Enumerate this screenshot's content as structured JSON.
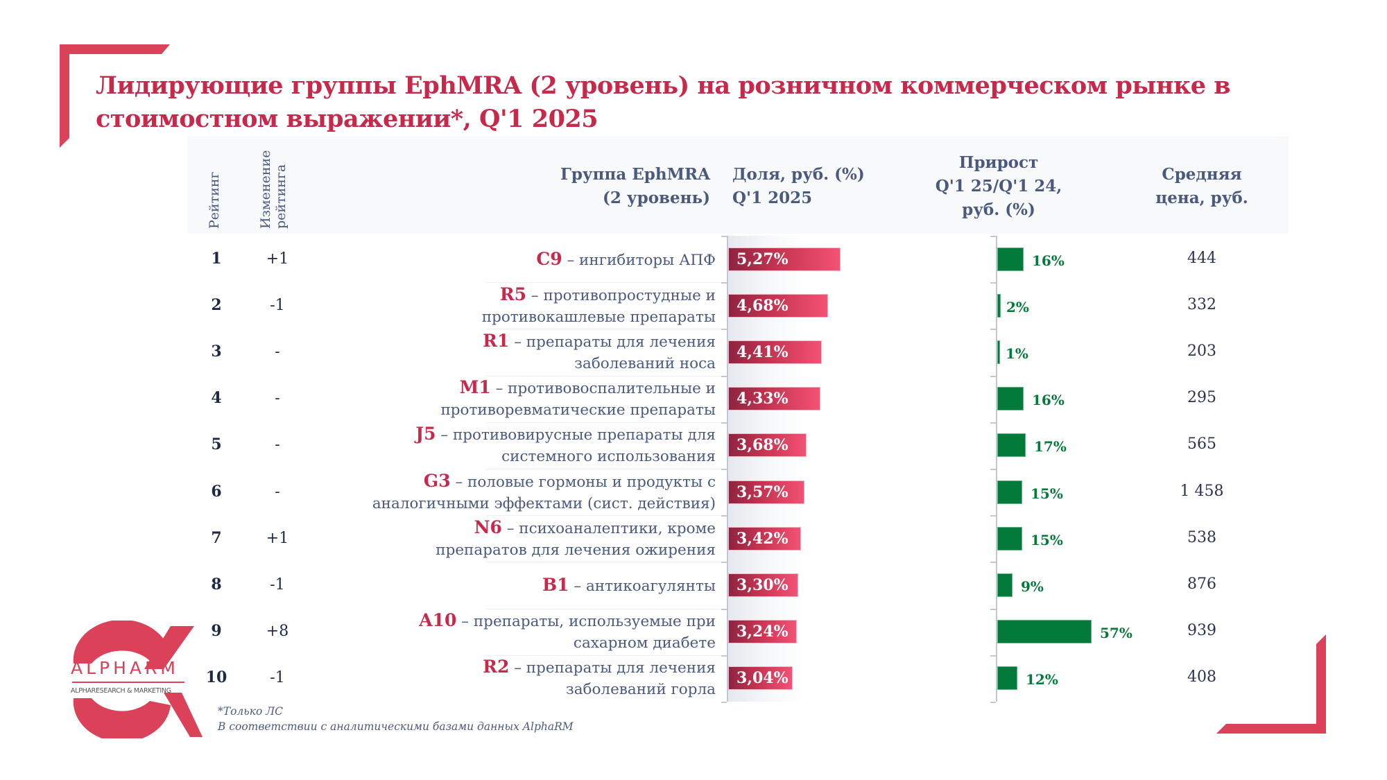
{
  "title": "Лидирующие группы EphMRA (2 уровень) на розничном коммерческом рынке в стоимостном выражении*, Q'1 2025",
  "headers": {
    "rank": "Рейтинг",
    "change_line1": "Изменение",
    "change_line2": "рейтинга",
    "group_line1": "Группа EphMRA",
    "group_line2": "(2 уровень)",
    "share_line1": "Доля, руб. (%)",
    "share_line2": "Q'1 2025",
    "growth_line1": "Прирост",
    "growth_line2": "Q'1 25/Q'1 24,",
    "growth_line3": "руб. (%)",
    "price_line1": "Средняя",
    "price_line2": "цена, руб."
  },
  "colors": {
    "accent": "#c8294a",
    "share_bar_dark": "#8e2440",
    "share_bar_light": "#f35275",
    "growth_bar": "#047a3a",
    "header_text": "#4a5a7e",
    "bracket": "#db4159"
  },
  "chart_data": {
    "type": "table",
    "title": "Лидирующие группы EphMRA (2 уровень) на розничном коммерческом рынке в стоимостном выражении*, Q'1 2025",
    "columns": [
      "Рейтинг",
      "Изменение рейтинга",
      "Группа EphMRA (2 уровень)",
      "Доля, руб. (%) Q'1 2025",
      "Прирост Q'1 25/Q'1 24, руб. (%)",
      "Средняя цена, руб."
    ],
    "rows": [
      {
        "rank": "1",
        "change": "+1",
        "code": "C9",
        "desc_line1": "– ингибиторы АПФ",
        "desc_line2": "",
        "share": 5.27,
        "share_label": "5,27%",
        "growth": 16,
        "growth_label": "16%",
        "price": "444"
      },
      {
        "rank": "2",
        "change": "-1",
        "code": "R5",
        "desc_line1": "– противопростудные и",
        "desc_line2": "противокашлевые препараты",
        "share": 4.68,
        "share_label": "4,68%",
        "growth": 2,
        "growth_label": "2%",
        "price": "332"
      },
      {
        "rank": "3",
        "change": "-",
        "code": "R1",
        "desc_line1": "– препараты для лечения",
        "desc_line2": "заболеваний носа",
        "share": 4.41,
        "share_label": "4,41%",
        "growth": 1,
        "growth_label": "1%",
        "price": "203"
      },
      {
        "rank": "4",
        "change": "-",
        "code": "M1",
        "desc_line1": "– противовоспалительные и",
        "desc_line2": "противоревматические препараты",
        "share": 4.33,
        "share_label": "4,33%",
        "growth": 16,
        "growth_label": "16%",
        "price": "295"
      },
      {
        "rank": "5",
        "change": "-",
        "code": "J5",
        "desc_line1": "– противовирусные препараты для",
        "desc_line2": "системного использования",
        "share": 3.68,
        "share_label": "3,68%",
        "growth": 17,
        "growth_label": "17%",
        "price": "565"
      },
      {
        "rank": "6",
        "change": "-",
        "code": "G3",
        "desc_line1": "– половые гормоны и продукты с",
        "desc_line2": "аналогичными эффектами (сист. действия)",
        "share": 3.57,
        "share_label": "3,57%",
        "growth": 15,
        "growth_label": "15%",
        "price": "1 458"
      },
      {
        "rank": "7",
        "change": "+1",
        "code": "N6",
        "desc_line1": "– психоаналептики, кроме",
        "desc_line2": "препаратов для лечения ожирения",
        "share": 3.42,
        "share_label": "3,42%",
        "growth": 15,
        "growth_label": "15%",
        "price": "538"
      },
      {
        "rank": "8",
        "change": "-1",
        "code": "B1",
        "desc_line1": "– антикоагулянты",
        "desc_line2": "",
        "share": 3.3,
        "share_label": "3,30%",
        "growth": 9,
        "growth_label": "9%",
        "price": "876"
      },
      {
        "rank": "9",
        "change": "+8",
        "code": "A10",
        "desc_line1": "– препараты, используемые при",
        "desc_line2": "сахарном диабете",
        "share": 3.24,
        "share_label": "3,24%",
        "growth": 57,
        "growth_label": "57%",
        "price": "939"
      },
      {
        "rank": "10",
        "change": "-1",
        "code": "R2",
        "desc_line1": "– препараты для лечения",
        "desc_line2": "заболеваний горла",
        "share": 3.04,
        "share_label": "3,04%",
        "growth": 12,
        "growth_label": "12%",
        "price": "408"
      }
    ]
  },
  "footnotes": {
    "line1": "*Только ЛС",
    "line2": "В соответствии с аналитическими базами данных AlphaRM"
  },
  "logo": {
    "name": "ALPHARM",
    "tagline": "ALPHARESEARCH & MARKETING"
  }
}
